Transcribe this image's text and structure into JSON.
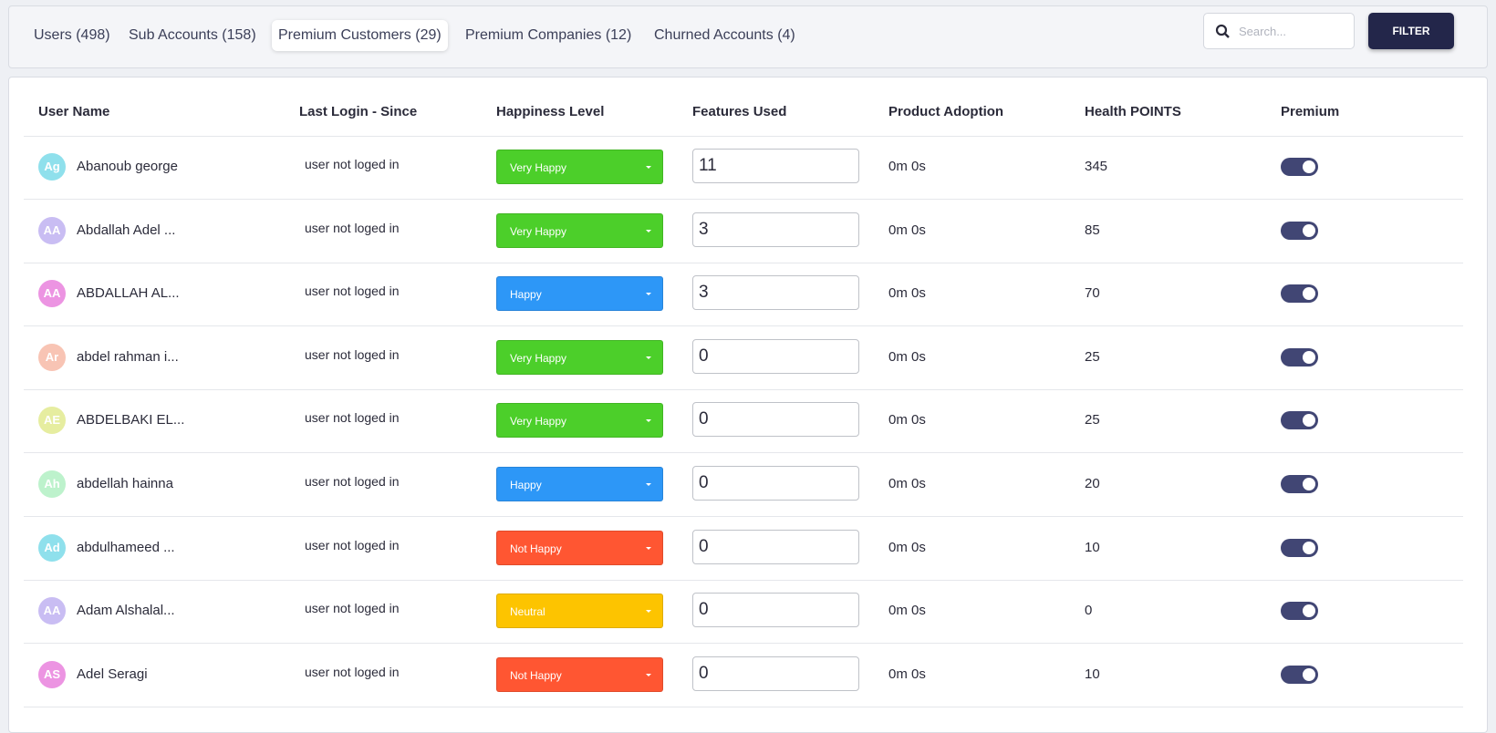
{
  "tabs": [
    "Users (498)",
    "Sub Accounts (158)",
    "Premium Customers (29)",
    "Premium Companies (12)",
    "Churned Accounts (4)"
  ],
  "active_tab": 2,
  "search_placeholder": "Search...",
  "filter_button": "FILTER",
  "table": {
    "headers": [
      "User Name",
      "Last Login - Since",
      "Happiness Level",
      "Features Used",
      "Product Adoption",
      "Health POINTS",
      "Premium"
    ],
    "rows": [
      {
        "initials": "Ag",
        "avatar_color": "#8fe0ec",
        "name": "Abanoub george",
        "last_login": "user not loged in",
        "happiness": "Very Happy",
        "happiness_color": "#4ccf2a",
        "features": "11",
        "adoption": "0m 0s",
        "health": "345",
        "premium": true
      },
      {
        "initials": "AA",
        "avatar_color": "#c9bdf3",
        "name": "Abdallah Adel ...",
        "last_login": "user not loged in",
        "happiness": "Very Happy",
        "happiness_color": "#4ccf2a",
        "features": "3",
        "adoption": "0m 0s",
        "health": "85",
        "premium": true
      },
      {
        "initials": "AA",
        "avatar_color": "#ec94e2",
        "name": "ABDALLAH AL...",
        "last_login": "user not loged in",
        "happiness": "Happy",
        "happiness_color": "#2d97f7",
        "features": "3",
        "adoption": "0m 0s",
        "health": "70",
        "premium": true
      },
      {
        "initials": "Ar",
        "avatar_color": "#f8c4b4",
        "name": "abdel rahman i...",
        "last_login": "user not loged in",
        "happiness": "Very Happy",
        "happiness_color": "#4ccf2a",
        "features": "0",
        "adoption": "0m 0s",
        "health": "25",
        "premium": true
      },
      {
        "initials": "AE",
        "avatar_color": "#e6eda0",
        "name": "ABDELBAKI EL...",
        "last_login": "user not loged in",
        "happiness": "Very Happy",
        "happiness_color": "#4ccf2a",
        "features": "0",
        "adoption": "0m 0s",
        "health": "25",
        "premium": true
      },
      {
        "initials": "Ah",
        "avatar_color": "#bdf2cc",
        "name": "abdellah hainna",
        "last_login": "user not loged in",
        "happiness": "Happy",
        "happiness_color": "#2d97f7",
        "features": "0",
        "adoption": "0m 0s",
        "health": "20",
        "premium": true
      },
      {
        "initials": "Ad",
        "avatar_color": "#8fe0ec",
        "name": "abdulhameed ...",
        "last_login": "user not loged in",
        "happiness": "Not Happy",
        "happiness_color": "#ff5632",
        "features": "0",
        "adoption": "0m 0s",
        "health": "10",
        "premium": true
      },
      {
        "initials": "AA",
        "avatar_color": "#c9bdf3",
        "name": "Adam Alshalal...",
        "last_login": "user not loged in",
        "happiness": "Neutral",
        "happiness_color": "#fdc400",
        "features": "0",
        "adoption": "0m 0s",
        "health": "0",
        "premium": true
      },
      {
        "initials": "AS",
        "avatar_color": "#ec94e2",
        "name": "Adel Seragi",
        "last_login": "user not loged in",
        "happiness": "Not Happy",
        "happiness_color": "#ff5632",
        "features": "0",
        "adoption": "0m 0s",
        "health": "10",
        "premium": true
      }
    ]
  }
}
